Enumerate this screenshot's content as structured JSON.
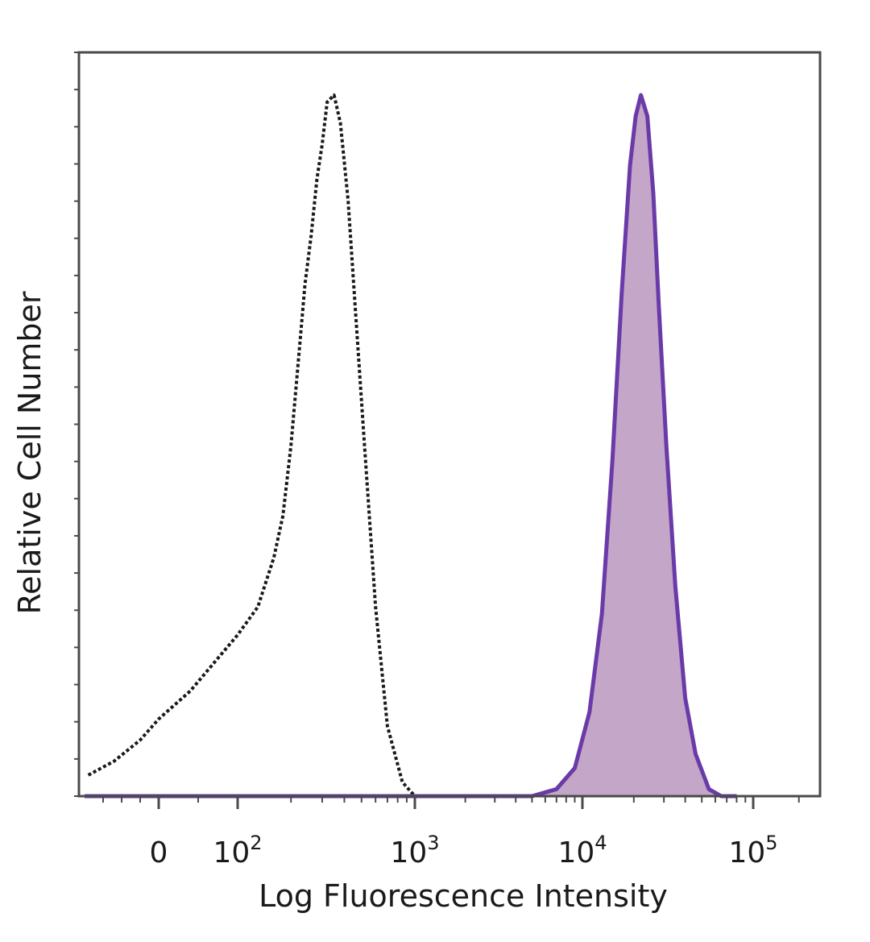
{
  "chart_data": {
    "type": "area",
    "title": "",
    "xlabel": "Log Fluorescence Intensity",
    "ylabel": "Relative Cell Number",
    "x_scale": "biexponential (linear near 0, log above ~10^2)",
    "xlim": [
      -200,
      250000
    ],
    "ylim": [
      0,
      100
    ],
    "x_ticks": [
      {
        "value": 0,
        "base": "0",
        "exp": ""
      },
      {
        "value": 100,
        "base": "10",
        "exp": "2"
      },
      {
        "value": 1000,
        "base": "10",
        "exp": "3"
      },
      {
        "value": 10000,
        "base": "10",
        "exp": "4"
      },
      {
        "value": 100000,
        "base": "10",
        "exp": "5"
      }
    ],
    "grid": false,
    "legend": "none",
    "series": [
      {
        "style": "dotted-outline",
        "color": "#1a1a1a",
        "fill": "none",
        "x": [
          -190,
          -120,
          -50,
          0,
          40,
          70,
          100,
          130,
          160,
          180,
          200,
          220,
          240,
          260,
          280,
          300,
          320,
          350,
          380,
          420,
          460,
          520,
          600,
          700,
          850,
          1000,
          1200
        ],
        "y": [
          3,
          5,
          8,
          11,
          15,
          19,
          23,
          27,
          34,
          40,
          50,
          62,
          73,
          80,
          88,
          93,
          99,
          100,
          96,
          85,
          70,
          50,
          27,
          10,
          2,
          0,
          0
        ]
      },
      {
        "style": "filled",
        "color": "#6a3aa8",
        "fill": "#c3a6c8",
        "x": [
          -200,
          5000,
          7000,
          9000,
          11000,
          13000,
          15000,
          17000,
          19000,
          20500,
          22000,
          24000,
          26000,
          28000,
          31000,
          35000,
          40000,
          46000,
          55000,
          65000,
          80000
        ],
        "y": [
          0,
          0,
          1,
          4,
          12,
          26,
          48,
          72,
          90,
          97,
          100,
          97,
          86,
          70,
          50,
          30,
          14,
          6,
          1,
          0,
          0
        ]
      }
    ]
  }
}
